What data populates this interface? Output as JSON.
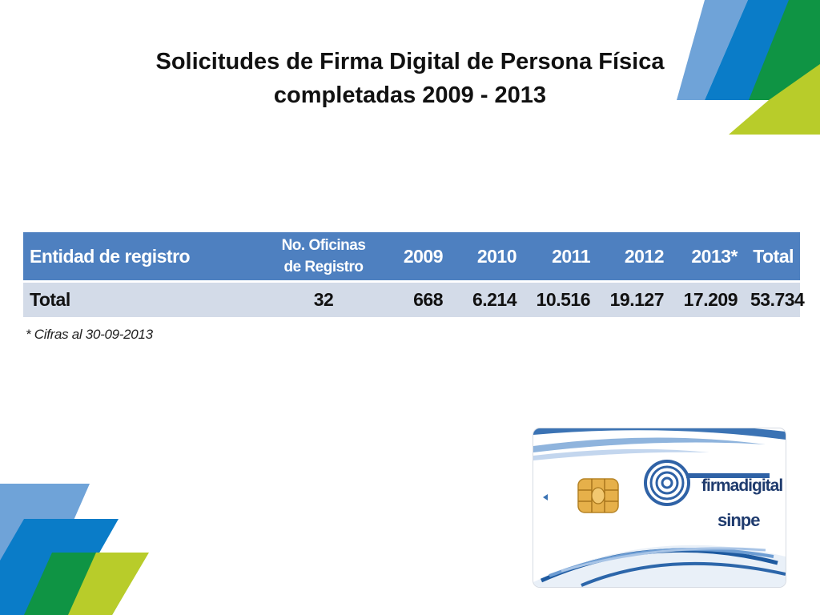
{
  "slide": {
    "title_line1": "Solicitudes de Firma Digital de Persona Física",
    "title_line2": "completadas 2009 - 2013"
  },
  "table": {
    "headers": {
      "entity": "Entidad de registro",
      "offices_line1": "No. Oficinas",
      "offices_line2": "de Registro",
      "y2009": "2009",
      "y2010": "2010",
      "y2011": "2011",
      "y2012": "2012",
      "y2013": "2013*",
      "total": "Total"
    },
    "row": {
      "label": "Total",
      "offices": "32",
      "y2009": "668",
      "y2010": "6.214",
      "y2011": "10.516",
      "y2012": "19.127",
      "y2013": "17.209",
      "total": "53.734"
    }
  },
  "footnote": "* Cifras al 30-09-2013",
  "card": {
    "brand": "firmadigital",
    "issuer": "sinpe"
  },
  "colors": {
    "header_blue": "#4e80c0",
    "row_gray": "#d3dbe8",
    "deco_light_blue": "#6fa3d8",
    "deco_blue": "#0a7cc8",
    "deco_green": "#0f9444",
    "deco_lime": "#b8cc2a"
  },
  "icons": [
    "smart-card-chip-icon",
    "fingerprint-key-logo-icon"
  ]
}
